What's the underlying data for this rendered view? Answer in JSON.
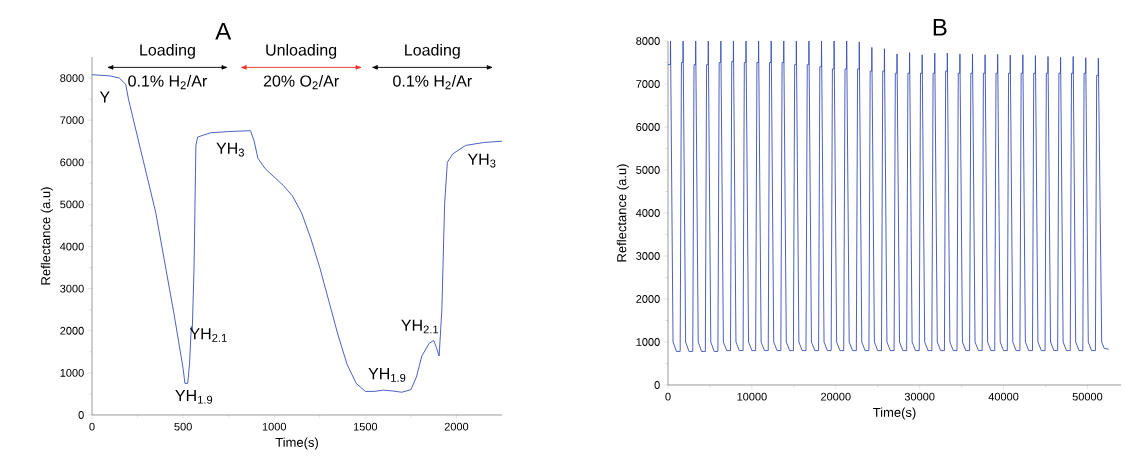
{
  "chart_data": [
    {
      "type": "line",
      "title": "A",
      "xlabel": "Time(s)",
      "ylabel": "Reflectance (a.u)",
      "xlim": [
        0,
        2250
      ],
      "ylim": [
        0,
        8500
      ],
      "xticks": [
        0,
        500,
        1000,
        1500,
        2000
      ],
      "yticks": [
        0,
        1000,
        2000,
        3000,
        4000,
        5000,
        6000,
        7000,
        8000
      ],
      "series": [
        {
          "color": "#3a4fb8",
          "x": [
            0,
            100,
            150,
            185,
            200,
            250,
            300,
            350,
            400,
            450,
            500,
            510,
            525,
            535,
            545,
            550,
            560,
            570,
            580,
            650,
            750,
            870,
            890,
            910,
            950,
            1000,
            1050,
            1100,
            1150,
            1200,
            1250,
            1300,
            1350,
            1400,
            1450,
            1500,
            1550,
            1600,
            1650,
            1700,
            1750,
            1780,
            1810,
            1850,
            1875,
            1890,
            1905,
            1920,
            1935,
            1950,
            1980,
            2050,
            2150,
            2250
          ],
          "values": [
            8080,
            8050,
            8000,
            7850,
            7500,
            6600,
            5700,
            4800,
            3600,
            2400,
            1100,
            750,
            750,
            1200,
            2100,
            2000,
            3500,
            6400,
            6600,
            6700,
            6730,
            6750,
            6500,
            6100,
            5850,
            5650,
            5450,
            5200,
            4800,
            4200,
            3500,
            2700,
            1900,
            1200,
            750,
            560,
            560,
            590,
            570,
            540,
            600,
            900,
            1400,
            1700,
            1770,
            1600,
            1400,
            2500,
            5000,
            6000,
            6200,
            6400,
            6470,
            6500
          ]
        }
      ],
      "annotations": [
        "Loading",
        "0.1% H$_{2}$/Ar",
        "Unloading",
        "20% O$_{2}$/Ar",
        "Loading",
        "0.1% H$_{2}$/Ar",
        "Y",
        "YH$_{1.9}$",
        "YH$_{2.1}$",
        "YH$_{3}$",
        "YH$_{1.9}$",
        "YH$_{2.1}$",
        "YH$_{3}$"
      ]
    },
    {
      "type": "line",
      "title": "B",
      "xlabel": "Time(s)",
      "ylabel": "Reflectance (a.u)",
      "xlim": [
        0,
        54000
      ],
      "ylim": [
        0,
        8000
      ],
      "xticks": [
        0,
        10000,
        20000,
        30000,
        40000,
        50000
      ],
      "yticks": [
        0,
        1000,
        2000,
        3000,
        4000,
        5000,
        6000,
        7000,
        8000
      ],
      "series": [
        {
          "color": "#3a4fb8",
          "x": [
            0,
            280,
            300,
            600,
            1000,
            1450,
            1600,
            1780,
            1800,
            2100,
            2500,
            2950,
            3100,
            3280,
            3300,
            3600,
            4000,
            4450,
            4600,
            4780,
            4800,
            5100,
            5500,
            5950,
            6100,
            6280,
            6300,
            6600,
            7000,
            7450,
            7600,
            7780,
            7800,
            8100,
            8500,
            8950,
            9100,
            9280,
            9300,
            9600,
            10000,
            10450,
            10600,
            10780,
            10800,
            11100,
            11500,
            11950,
            12100,
            12280,
            12300,
            12600,
            13000,
            13450,
            13600,
            13780,
            13800,
            14100,
            14500,
            14950,
            15100,
            15280,
            15300,
            15600,
            16000,
            16450,
            16600,
            16780,
            16800,
            17100,
            17500,
            17950,
            18100,
            18280,
            18300,
            18600,
            19000,
            19450,
            19600,
            19780,
            19800,
            20100,
            20500,
            20950,
            21100,
            21280,
            21300,
            21600,
            22000,
            22450,
            22600,
            22780,
            22800,
            23100,
            23500,
            23950,
            24100,
            24280,
            24300,
            24600,
            25000,
            25450,
            25600,
            25780,
            25800,
            26100,
            26500,
            26950,
            27100,
            27280,
            27300,
            27600,
            28000,
            28450,
            28600,
            28780,
            28800,
            29100,
            29500,
            29950,
            30100,
            30280,
            30300,
            30600,
            31000,
            31450,
            31600,
            31780,
            31800,
            32100,
            32500,
            32950,
            33100,
            33280,
            33300,
            33600,
            34000,
            34450,
            34600,
            34780,
            34800,
            35100,
            35500,
            35950,
            36100,
            36280,
            36300,
            36600,
            37000,
            37450,
            37600,
            37780,
            37800,
            38100,
            38500,
            38950,
            39100,
            39280,
            39300,
            39600,
            40000,
            40450,
            40600,
            40780,
            40800,
            41100,
            41500,
            41950,
            42100,
            42280,
            42300,
            42600,
            43000,
            43450,
            43600,
            43780,
            43800,
            44100,
            44500,
            44950,
            45100,
            45280,
            45300,
            45600,
            46000,
            46450,
            46600,
            46780,
            46800,
            47100,
            47500,
            47950,
            48100,
            48280,
            48300,
            48600,
            49000,
            49450,
            49600,
            49780,
            49800,
            50100,
            50500,
            50950,
            51100,
            51280,
            51300,
            51700,
            52000,
            52550
          ],
          "values": [
            7450,
            7450,
            8000,
            1000,
            780,
            780,
            7500,
            7500,
            8000,
            1000,
            780,
            780,
            7450,
            7450,
            8000,
            1000,
            780,
            780,
            7450,
            7450,
            8000,
            1000,
            780,
            780,
            7500,
            7500,
            8000,
            1000,
            800,
            800,
            7520,
            7520,
            8000,
            1000,
            800,
            800,
            7500,
            7500,
            8000,
            1000,
            800,
            800,
            7500,
            7500,
            8000,
            1000,
            800,
            800,
            7500,
            7500,
            8000,
            1000,
            800,
            800,
            7500,
            7500,
            8000,
            1000,
            800,
            800,
            7450,
            7450,
            8000,
            1000,
            800,
            800,
            7450,
            7450,
            8000,
            1000,
            800,
            800,
            7400,
            7400,
            8000,
            1000,
            800,
            800,
            7350,
            7350,
            8000,
            1000,
            800,
            800,
            7350,
            7350,
            8000,
            1000,
            800,
            800,
            7350,
            7350,
            7980,
            1000,
            800,
            800,
            7300,
            7300,
            7850,
            1000,
            800,
            800,
            7300,
            7300,
            7820,
            1000,
            800,
            800,
            7250,
            7250,
            7700,
            1000,
            800,
            800,
            7250,
            7250,
            7730,
            1000,
            800,
            800,
            7250,
            7250,
            7680,
            1000,
            800,
            800,
            7250,
            7250,
            7720,
            1000,
            800,
            800,
            7300,
            7300,
            7720,
            1000,
            800,
            800,
            7250,
            7250,
            7700,
            1000,
            800,
            800,
            7250,
            7250,
            7700,
            1000,
            800,
            800,
            7250,
            7250,
            7680,
            1000,
            800,
            800,
            7250,
            7250,
            7690,
            1000,
            800,
            800,
            7250,
            7250,
            7670,
            1000,
            800,
            800,
            7250,
            7250,
            7680,
            1000,
            800,
            800,
            7250,
            7250,
            7660,
            1000,
            800,
            800,
            7250,
            7250,
            7640,
            1000,
            800,
            800,
            7250,
            7250,
            7620,
            1000,
            800,
            800,
            7250,
            7250,
            7640,
            1000,
            800,
            800,
            7250,
            7250,
            7610,
            1000,
            800,
            800,
            7200,
            7200,
            7600,
            1000,
            850,
            830
          ]
        }
      ]
    }
  ]
}
